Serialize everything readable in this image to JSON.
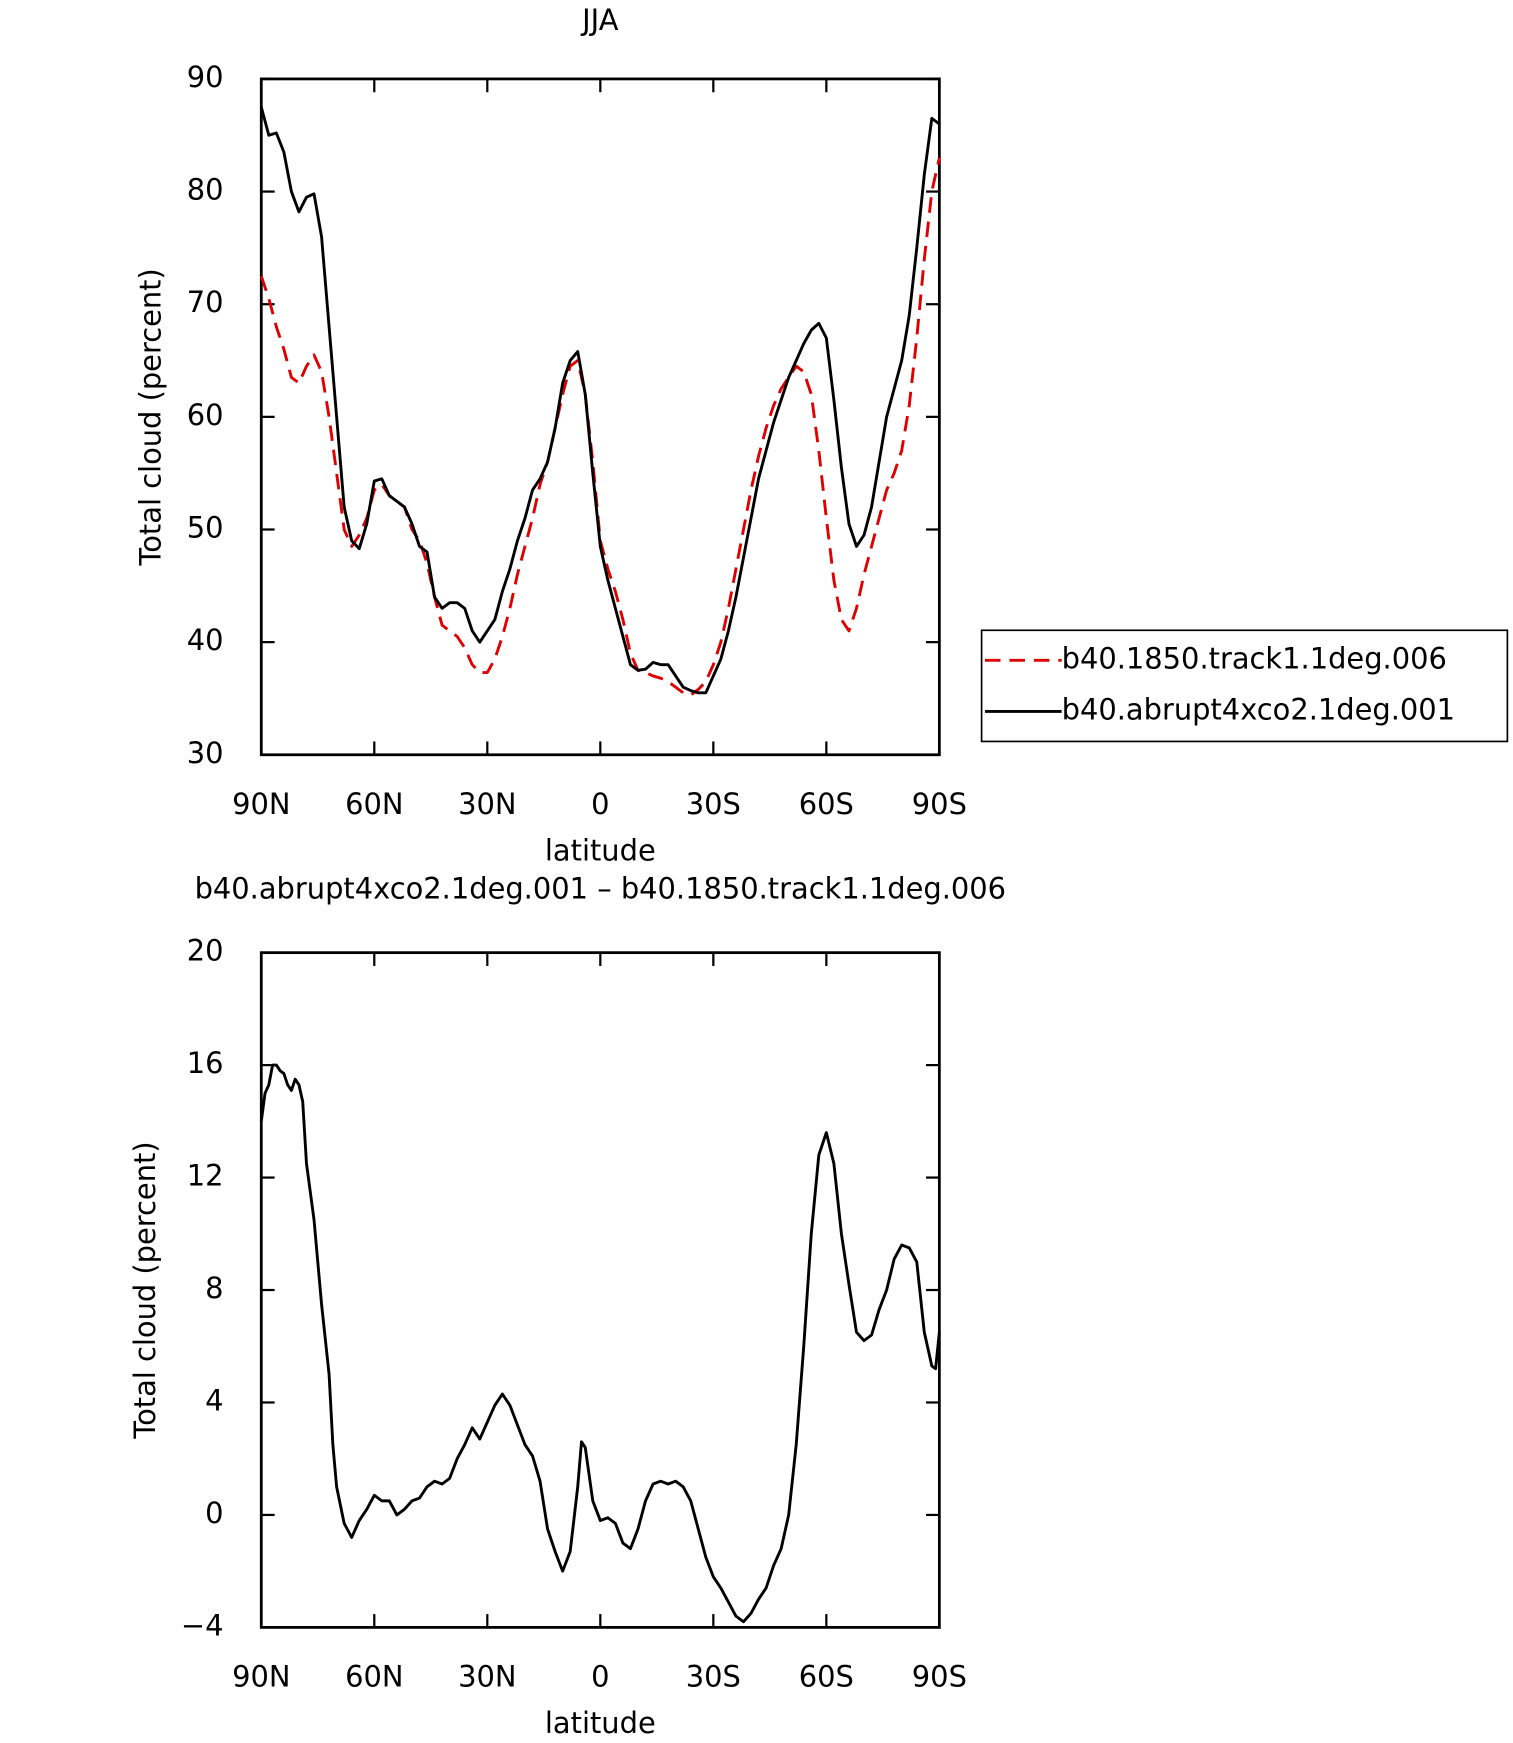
{
  "chart_data": [
    {
      "type": "line",
      "title": "JJA",
      "xlabel": "latitude",
      "ylabel": "Total cloud (percent)",
      "xlim": [
        90,
        -90
      ],
      "xticks": [
        {
          "value": 90,
          "label": "90N"
        },
        {
          "value": 60,
          "label": "60N"
        },
        {
          "value": 30,
          "label": "30N"
        },
        0,
        {
          "value": -30,
          "label": "30S"
        },
        {
          "value": -60,
          "label": "60S"
        },
        {
          "value": -90,
          "label": "90S"
        }
      ],
      "ylim": [
        30,
        90
      ],
      "yticks": [
        30,
        40,
        50,
        60,
        70,
        80,
        90
      ],
      "legend": "right",
      "x": [
        90,
        88,
        86,
        84,
        82,
        80,
        78,
        76,
        74,
        72,
        70,
        68,
        66,
        64,
        62,
        60,
        58,
        56,
        54,
        52,
        50,
        48,
        46,
        44,
        42,
        40,
        38,
        36,
        34,
        32,
        30,
        28,
        26,
        24,
        22,
        20,
        18,
        16,
        14,
        12,
        10,
        8,
        6,
        4,
        2,
        0,
        -2,
        -4,
        -6,
        -8,
        -10,
        -12,
        -14,
        -16,
        -18,
        -20,
        -22,
        -24,
        -26,
        -28,
        -30,
        -32,
        -34,
        -36,
        -38,
        -40,
        -42,
        -44,
        -46,
        -48,
        -50,
        -52,
        -54,
        -56,
        -58,
        -60,
        -62,
        -64,
        -66,
        -68,
        -70,
        -72,
        -74,
        -76,
        -78,
        -80,
        -82,
        -84,
        -86,
        -88,
        -90
      ],
      "series": [
        {
          "name": "b40.1850.track1.1deg.006",
          "color": "#e00000",
          "dashed": true,
          "values": [
            72.5,
            70.5,
            68,
            66,
            63.5,
            63,
            64.5,
            65.5,
            64,
            60,
            55,
            50,
            48.5,
            49.5,
            51,
            53.5,
            54,
            53,
            52.5,
            52,
            50,
            49,
            47,
            44,
            41.5,
            41,
            40.5,
            39.5,
            38,
            37.3,
            37.3,
            38.5,
            40.5,
            43,
            46,
            48.5,
            51,
            54,
            56,
            59,
            62,
            64.5,
            65,
            62,
            56,
            49,
            46.5,
            44.5,
            42,
            39,
            37.5,
            37.3,
            37,
            36.8,
            36.5,
            36,
            35.5,
            35.3,
            35.8,
            36.5,
            38,
            40,
            43,
            46.5,
            50,
            53.5,
            56.5,
            59,
            61,
            62.5,
            63.5,
            64.5,
            64,
            62,
            57,
            51,
            45.5,
            42,
            41,
            43,
            46,
            48.5,
            51,
            53.5,
            55,
            57,
            61,
            67,
            74,
            80,
            83
          ]
        },
        {
          "name": "b40.abrupt4xco2.1deg.001",
          "color": "#000000",
          "dashed": false,
          "values": [
            87.5,
            85,
            85.2,
            83.5,
            80,
            78.2,
            79.5,
            79.8,
            76,
            68,
            60,
            52,
            49,
            48.3,
            50.5,
            54.3,
            54.5,
            53,
            52.5,
            52,
            50.5,
            48.5,
            48,
            44,
            43,
            43.5,
            43.5,
            43,
            41,
            40,
            41,
            42,
            44.5,
            46.5,
            49,
            51,
            53.5,
            54.5,
            56,
            59,
            63,
            65,
            65.8,
            62,
            55,
            48.5,
            45.5,
            43,
            40.5,
            38,
            37.5,
            37.6,
            38.2,
            38,
            38,
            37,
            36,
            35.7,
            35.5,
            35.5,
            37,
            38.5,
            41,
            44,
            47.5,
            51,
            54.5,
            57,
            59.5,
            61.5,
            63.5,
            65,
            66.5,
            67.7,
            68.3,
            67,
            61.5,
            55.5,
            50.5,
            48.5,
            49.5,
            52,
            56,
            60,
            62.5,
            65,
            69,
            75,
            81.5,
            86.5,
            86
          ]
        }
      ]
    },
    {
      "type": "line",
      "title": "b40.abrupt4xco2.1deg.001 – b40.1850.track1.1deg.006",
      "xlabel": "latitude",
      "ylabel": "Total cloud (percent)",
      "xlim": [
        90,
        -90
      ],
      "xticks": [
        {
          "value": 90,
          "label": "90N"
        },
        {
          "value": 60,
          "label": "60N"
        },
        {
          "value": 30,
          "label": "30N"
        },
        0,
        {
          "value": -30,
          "label": "30S"
        },
        {
          "value": -60,
          "label": "60S"
        },
        {
          "value": -90,
          "label": "90S"
        }
      ],
      "ylim": [
        -4,
        20
      ],
      "yticks": [
        {
          "value": -4,
          "label": "−4"
        },
        0,
        4,
        8,
        12,
        16,
        20
      ],
      "color": "#000000",
      "x": [
        90,
        89,
        88,
        87,
        86,
        85,
        84,
        83,
        82,
        81,
        80,
        79,
        78,
        76,
        74,
        72,
        71,
        70,
        68,
        66,
        64,
        62,
        60,
        58,
        56,
        54,
        52,
        50,
        48,
        46,
        44,
        42,
        40,
        38,
        36,
        34,
        32,
        30,
        28,
        26,
        24,
        22,
        20,
        18,
        16,
        14,
        12,
        10,
        8,
        6,
        5,
        4,
        2,
        0,
        -2,
        -4,
        -6,
        -8,
        -10,
        -12,
        -14,
        -16,
        -18,
        -20,
        -22,
        -24,
        -26,
        -28,
        -30,
        -32,
        -34,
        -36,
        -38,
        -40,
        -42,
        -44,
        -46,
        -48,
        -50,
        -52,
        -54,
        -56,
        -58,
        -60,
        -62,
        -64,
        -66,
        -68,
        -70,
        -72,
        -74,
        -76,
        -78,
        -80,
        -82,
        -84,
        -86,
        -88,
        -89,
        -90
      ],
      "values": [
        14,
        15,
        15.3,
        16,
        16,
        15.8,
        15.7,
        15.3,
        15.1,
        15.5,
        15.3,
        14.7,
        12.5,
        10.5,
        7.5,
        5,
        2.5,
        1,
        -0.3,
        -0.8,
        -0.2,
        0.2,
        0.7,
        0.5,
        0.5,
        0,
        0.2,
        0.5,
        0.6,
        1,
        1.2,
        1.1,
        1.3,
        2,
        2.5,
        3.1,
        2.7,
        3.3,
        3.9,
        4.3,
        3.9,
        3.2,
        2.5,
        2.1,
        1.2,
        -0.5,
        -1.3,
        -2,
        -1.3,
        1,
        2.6,
        2.4,
        0.5,
        -0.2,
        -0.1,
        -0.3,
        -1,
        -1.2,
        -0.5,
        0.5,
        1.1,
        1.2,
        1.1,
        1.2,
        1,
        0.5,
        -0.5,
        -1.5,
        -2.2,
        -2.6,
        -3.1,
        -3.6,
        -3.8,
        -3.5,
        -3,
        -2.6,
        -1.8,
        -1.2,
        0,
        2.5,
        6,
        10,
        12.8,
        13.6,
        12.5,
        10,
        8.2,
        6.5,
        6.2,
        6.4,
        7.3,
        8,
        9.1,
        9.6,
        9.5,
        9,
        6.5,
        5.3,
        5.2,
        6.5
      ]
    }
  ]
}
